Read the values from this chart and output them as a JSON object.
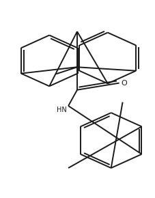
{
  "bg_color": "#ffffff",
  "line_color": "#1a1a1a",
  "line_width": 1.4,
  "figsize": [
    2.27,
    2.9
  ],
  "dpi": 100
}
